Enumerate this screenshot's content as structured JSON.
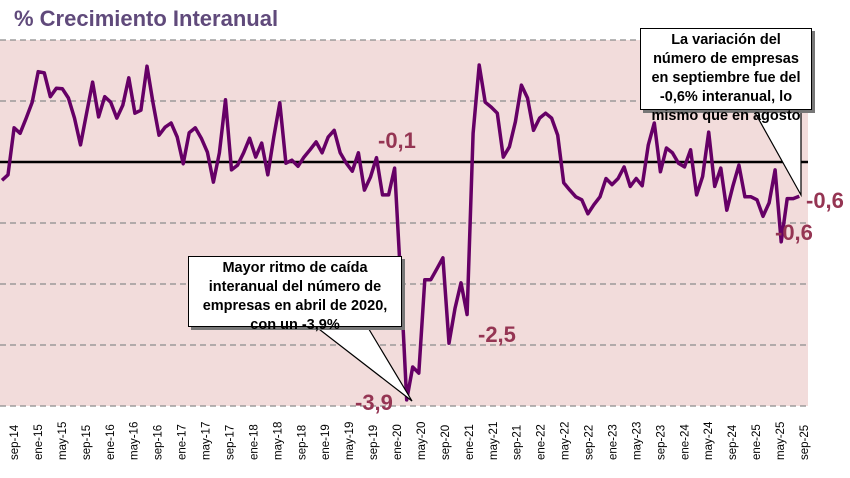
{
  "chart_data": {
    "type": "line",
    "title": "% Crecimiento Interanual",
    "xlabel": "",
    "ylabel": "",
    "ylim": [
      -4,
      2
    ],
    "gridlines": [
      2,
      1,
      0,
      -1,
      -2,
      -3,
      -4
    ],
    "grid": true,
    "start_month": "sep-14",
    "end_month": "sep-25",
    "tick_labels": [
      "sep-14",
      "ene-15",
      "may-15",
      "sep-15",
      "ene-16",
      "may-16",
      "sep-16",
      "ene-17",
      "may-17",
      "sep-17",
      "ene-18",
      "may-18",
      "sep-18",
      "ene-19",
      "may-19",
      "sep-19",
      "ene-20",
      "may-20",
      "sep-20",
      "ene-21",
      "may-21",
      "sep-21",
      "ene-22",
      "may-22",
      "sep-22",
      "ene-23",
      "may-23",
      "sep-23",
      "ene-24",
      "may-24",
      "sep-24",
      "ene-25",
      "may-25",
      "sep-25"
    ],
    "series": [
      {
        "name": "% Crecimiento Interanual",
        "color": "#660066",
        "values": [
          -0.3,
          -0.21,
          0.56,
          0.47,
          0.72,
          0.98,
          1.48,
          1.46,
          1.07,
          1.21,
          1.2,
          1.05,
          0.72,
          0.28,
          0.8,
          1.31,
          0.74,
          1.07,
          0.98,
          0.72,
          0.93,
          1.38,
          0.8,
          0.85,
          1.57,
          0.97,
          0.44,
          0.57,
          0.64,
          0.41,
          -0.03,
          0.48,
          0.56,
          0.39,
          0.16,
          -0.33,
          0.15,
          1.02,
          -0.13,
          -0.05,
          0.15,
          0.39,
          0.08,
          0.31,
          -0.21,
          0.41,
          0.97,
          -0.02,
          0.03,
          -0.07,
          0.08,
          0.2,
          0.33,
          0.15,
          0.41,
          0.52,
          0.15,
          -0.02,
          -0.15,
          0.15,
          -0.46,
          -0.25,
          0.07,
          -0.54,
          -0.54,
          -0.1,
          -1.9,
          -3.9,
          -3.36,
          -3.46,
          -1.93,
          -1.93,
          -1.75,
          -1.57,
          -2.97,
          -2.4,
          -1.98,
          -2.5,
          0.47,
          1.59,
          0.98,
          0.9,
          0.8,
          0.08,
          0.25,
          0.66,
          1.26,
          1.05,
          0.52,
          0.72,
          0.8,
          0.72,
          0.44,
          -0.34,
          -0.46,
          -0.57,
          -0.62,
          -0.85,
          -0.7,
          -0.57,
          -0.27,
          -0.37,
          -0.27,
          -0.08,
          -0.4,
          -0.27,
          -0.39,
          0.28,
          0.64,
          -0.16,
          0.23,
          0.15,
          -0.02,
          -0.08,
          0.2,
          -0.54,
          -0.24,
          0.49,
          -0.4,
          -0.1,
          -0.79,
          -0.4,
          -0.05,
          -0.57,
          -0.57,
          -0.62,
          -0.89,
          -0.67,
          -0.13,
          -1.31,
          -0.6,
          -0.6,
          -0.56
        ]
      }
    ],
    "data_labels": [
      {
        "text": "-0,1",
        "index": 65
      },
      {
        "text": "-3,9",
        "index": 67
      },
      {
        "text": "-2,5",
        "index": 77
      },
      {
        "text": "-0,6",
        "index": 131
      },
      {
        "text": "-0,6",
        "index": 132
      }
    ],
    "annotations": [
      {
        "text": "La variación del número de empresas en septiembre fue del -0,6% interanual, lo mismo que en agosto"
      },
      {
        "text": "Mayor ritmo de caída interanual del número de empresas en abril de 2020, con un -3,9%"
      }
    ],
    "colors": {
      "background": "#F2DCDB",
      "line": "#660066",
      "labels": "#953553",
      "title": "#604A7B"
    }
  }
}
